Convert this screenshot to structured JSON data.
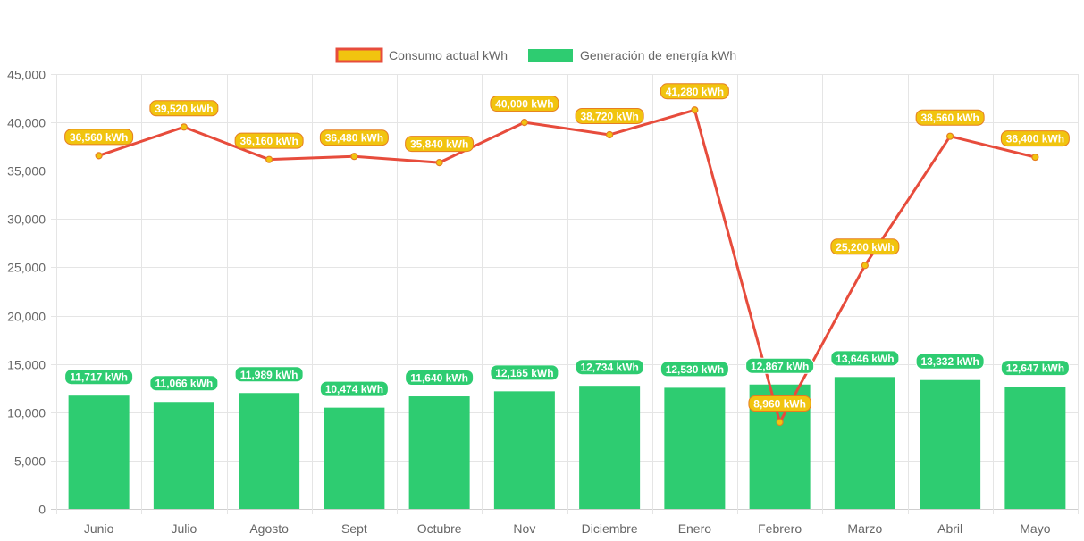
{
  "chart_data": {
    "type": "bar",
    "title": "",
    "xlabel": "",
    "ylabel": "",
    "ylim": [
      0,
      45000
    ],
    "yticks": [
      0,
      5000,
      10000,
      15000,
      20000,
      25000,
      30000,
      35000,
      40000,
      45000
    ],
    "ytick_labels": [
      "0",
      "5,000",
      "10,000",
      "15,000",
      "20,000",
      "25,000",
      "30,000",
      "35,000",
      "40,000",
      "45,000"
    ],
    "grid": true,
    "legend_position": "top-center",
    "categories": [
      "Junio",
      "Julio",
      "Agosto",
      "Sept",
      "Octubre",
      "Nov",
      "Diciembre",
      "Enero",
      "Febrero",
      "Marzo",
      "Abril",
      "Mayo"
    ],
    "series": [
      {
        "name": "Consumo actual kWh",
        "type": "line",
        "color": "#e74c3c",
        "marker_color": "#f1c40f",
        "values": [
          36560,
          39520,
          36160,
          36480,
          35840,
          40000,
          38720,
          41280,
          8960,
          25200,
          38560,
          36400
        ],
        "labels": [
          "36,560 kWh",
          "39,520 kWh",
          "36,160 kWh",
          "36,480 kWh",
          "35,840 kWh",
          "40,000 kWh",
          "38,720 kWh",
          "41,280 kWh",
          "8,960 kWh",
          "25,200 kWh",
          "38,560 kWh",
          "36,400 kWh"
        ]
      },
      {
        "name": "Generación de energía kWh",
        "type": "bar",
        "color": "#2ecc71",
        "values": [
          11717,
          11066,
          11989,
          10474,
          11640,
          12165,
          12734,
          12530,
          12867,
          13646,
          13332,
          12647
        ],
        "labels": [
          "11,717 kWh",
          "11,066 kWh",
          "11,989 kWh",
          "10,474 kWh",
          "11,640 kWh",
          "12,165 kWh",
          "12,734 kWh",
          "12,530 kWh",
          "12,867 kWh",
          "13,646 kWh",
          "13,332 kWh",
          "12,647 kWh"
        ]
      }
    ]
  }
}
